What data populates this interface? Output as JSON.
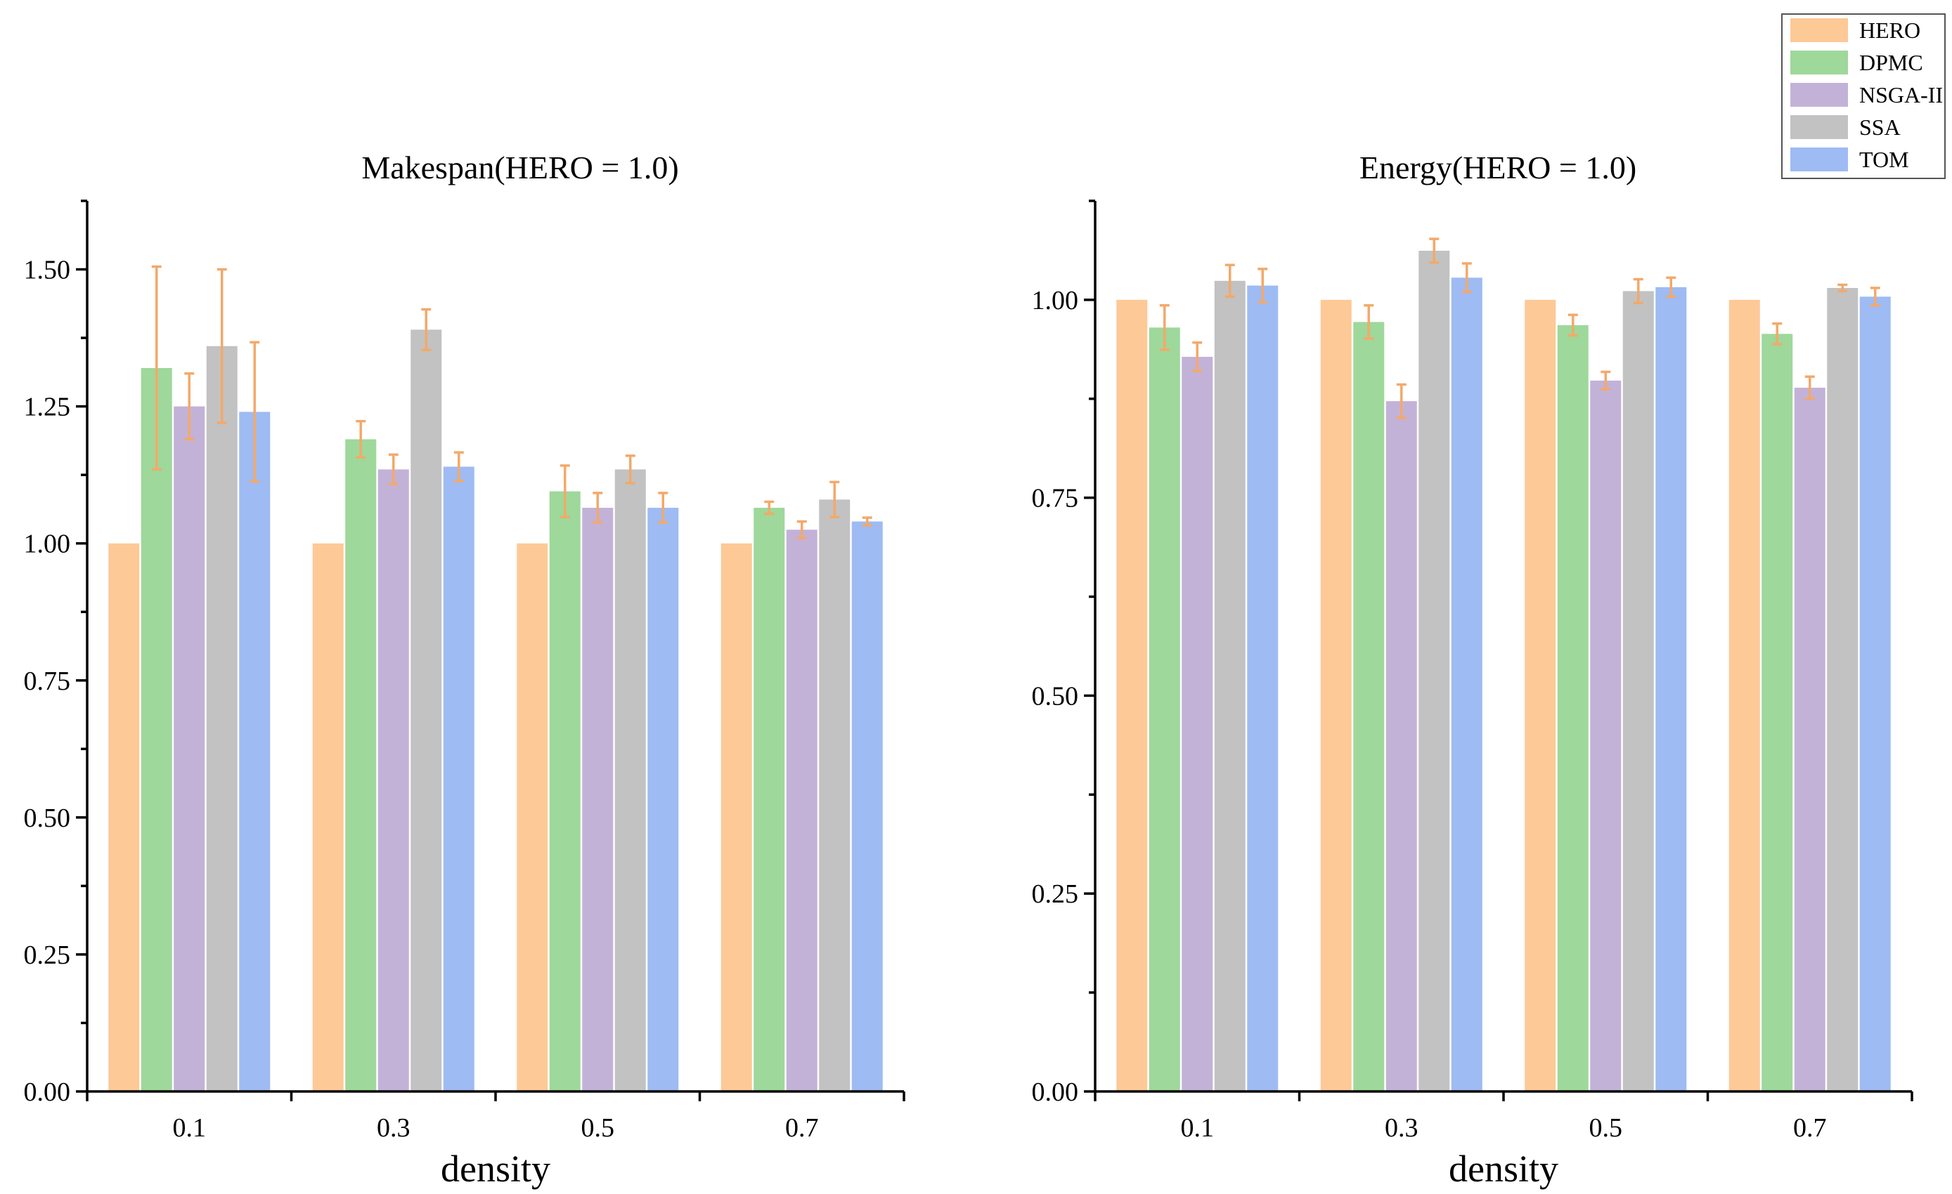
{
  "legend": {
    "items": [
      {
        "name": "HERO",
        "color": "#FDC997"
      },
      {
        "name": "DPMC",
        "color": "#9ED89A"
      },
      {
        "name": "NSGA-II",
        "color": "#C3B2D8"
      },
      {
        "name": "SSA",
        "color": "#C2C2C2"
      },
      {
        "name": "TOM",
        "color": "#9EBBF3"
      }
    ]
  },
  "error_bar_color": "#F3A96A",
  "chart_data": [
    {
      "type": "bar",
      "title": "Makespan(HERO = 1.0)",
      "xlabel": "density",
      "ylabel": "",
      "categories": [
        "0.1",
        "0.3",
        "0.5",
        "0.7"
      ],
      "ylim": [
        0,
        1.625
      ],
      "yticks": [
        "0.00",
        "0.25",
        "0.50",
        "0.75",
        "1.00",
        "1.25",
        "1.50"
      ],
      "series": [
        {
          "name": "HERO",
          "values": [
            1.0,
            1.0,
            1.0,
            1.0
          ],
          "errors": [
            0,
            0,
            0,
            0
          ]
        },
        {
          "name": "DPMC",
          "values": [
            1.32,
            1.19,
            1.095,
            1.065
          ],
          "errors": [
            0.185,
            0.033,
            0.047,
            0.011
          ]
        },
        {
          "name": "NSGA-II",
          "values": [
            1.25,
            1.135,
            1.065,
            1.025
          ],
          "errors": [
            0.06,
            0.027,
            0.027,
            0.015
          ]
        },
        {
          "name": "SSA",
          "values": [
            1.36,
            1.39,
            1.135,
            1.08
          ],
          "errors": [
            0.14,
            0.037,
            0.025,
            0.032
          ]
        },
        {
          "name": "TOM",
          "values": [
            1.24,
            1.14,
            1.065,
            1.04
          ],
          "errors": [
            0.127,
            0.026,
            0.027,
            0.007
          ]
        }
      ],
      "legend": "top-right",
      "grid": false
    },
    {
      "type": "bar",
      "title": "Energy(HERO = 1.0)",
      "xlabel": "density",
      "ylabel": "",
      "categories": [
        "0.1",
        "0.3",
        "0.5",
        "0.7"
      ],
      "ylim": [
        0,
        1.125
      ],
      "yticks": [
        "0.00",
        "0.25",
        "0.50",
        "0.75",
        "1.00"
      ],
      "series": [
        {
          "name": "HERO",
          "values": [
            1.0,
            1.0,
            1.0,
            1.0
          ],
          "errors": [
            0,
            0,
            0,
            0
          ]
        },
        {
          "name": "DPMC",
          "values": [
            0.965,
            0.972,
            0.968,
            0.957
          ],
          "errors": [
            0.028,
            0.021,
            0.013,
            0.013
          ]
        },
        {
          "name": "NSGA-II",
          "values": [
            0.928,
            0.872,
            0.898,
            0.889
          ],
          "errors": [
            0.018,
            0.021,
            0.011,
            0.014
          ]
        },
        {
          "name": "SSA",
          "values": [
            1.024,
            1.062,
            1.011,
            1.015
          ],
          "errors": [
            0.02,
            0.015,
            0.015,
            0.004
          ]
        },
        {
          "name": "TOM",
          "values": [
            1.018,
            1.028,
            1.016,
            1.004
          ],
          "errors": [
            0.021,
            0.018,
            0.012,
            0.011
          ]
        }
      ],
      "legend": "top-right",
      "grid": false
    }
  ]
}
